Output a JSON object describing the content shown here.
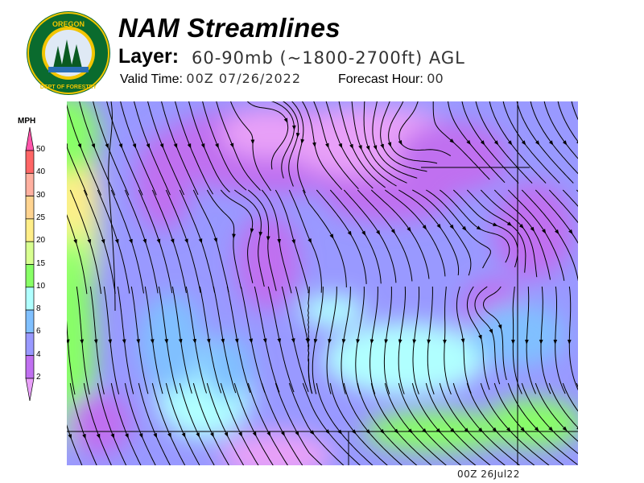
{
  "header": {
    "title": "NAM Streamlines",
    "layer_label": "Layer:",
    "layer_value": "60-90mb (~1800-2700ft) AGL",
    "valid_label": "Valid Time:",
    "valid_value": "00Z 07/26/2022",
    "forecast_label": "Forecast Hour:",
    "forecast_value": "00"
  },
  "logo": {
    "text_top": "OREGON",
    "text_bottom": "DEPARTMENT OF FORESTRY"
  },
  "legend": {
    "unit": "MPH",
    "bins": [
      {
        "label": "50",
        "color": "#ff6666"
      },
      {
        "label": "40",
        "color": "#ffb0a0"
      },
      {
        "label": "30",
        "color": "#ffd490"
      },
      {
        "label": "25",
        "color": "#ffee88"
      },
      {
        "label": "20",
        "color": "#d8ff90"
      },
      {
        "label": "15",
        "color": "#88ff66"
      },
      {
        "label": "10",
        "color": "#b0ffff"
      },
      {
        "label": "8",
        "color": "#80c0ff"
      },
      {
        "label": "6",
        "color": "#9999ff"
      },
      {
        "label": "4",
        "color": "#c070f0"
      },
      {
        "label": "2",
        "color": ""
      }
    ],
    "over_color": "#ff55aa",
    "under_color": "#e8a0f8"
  },
  "footer": {
    "timestamp": "00Z 26Jul22"
  }
}
